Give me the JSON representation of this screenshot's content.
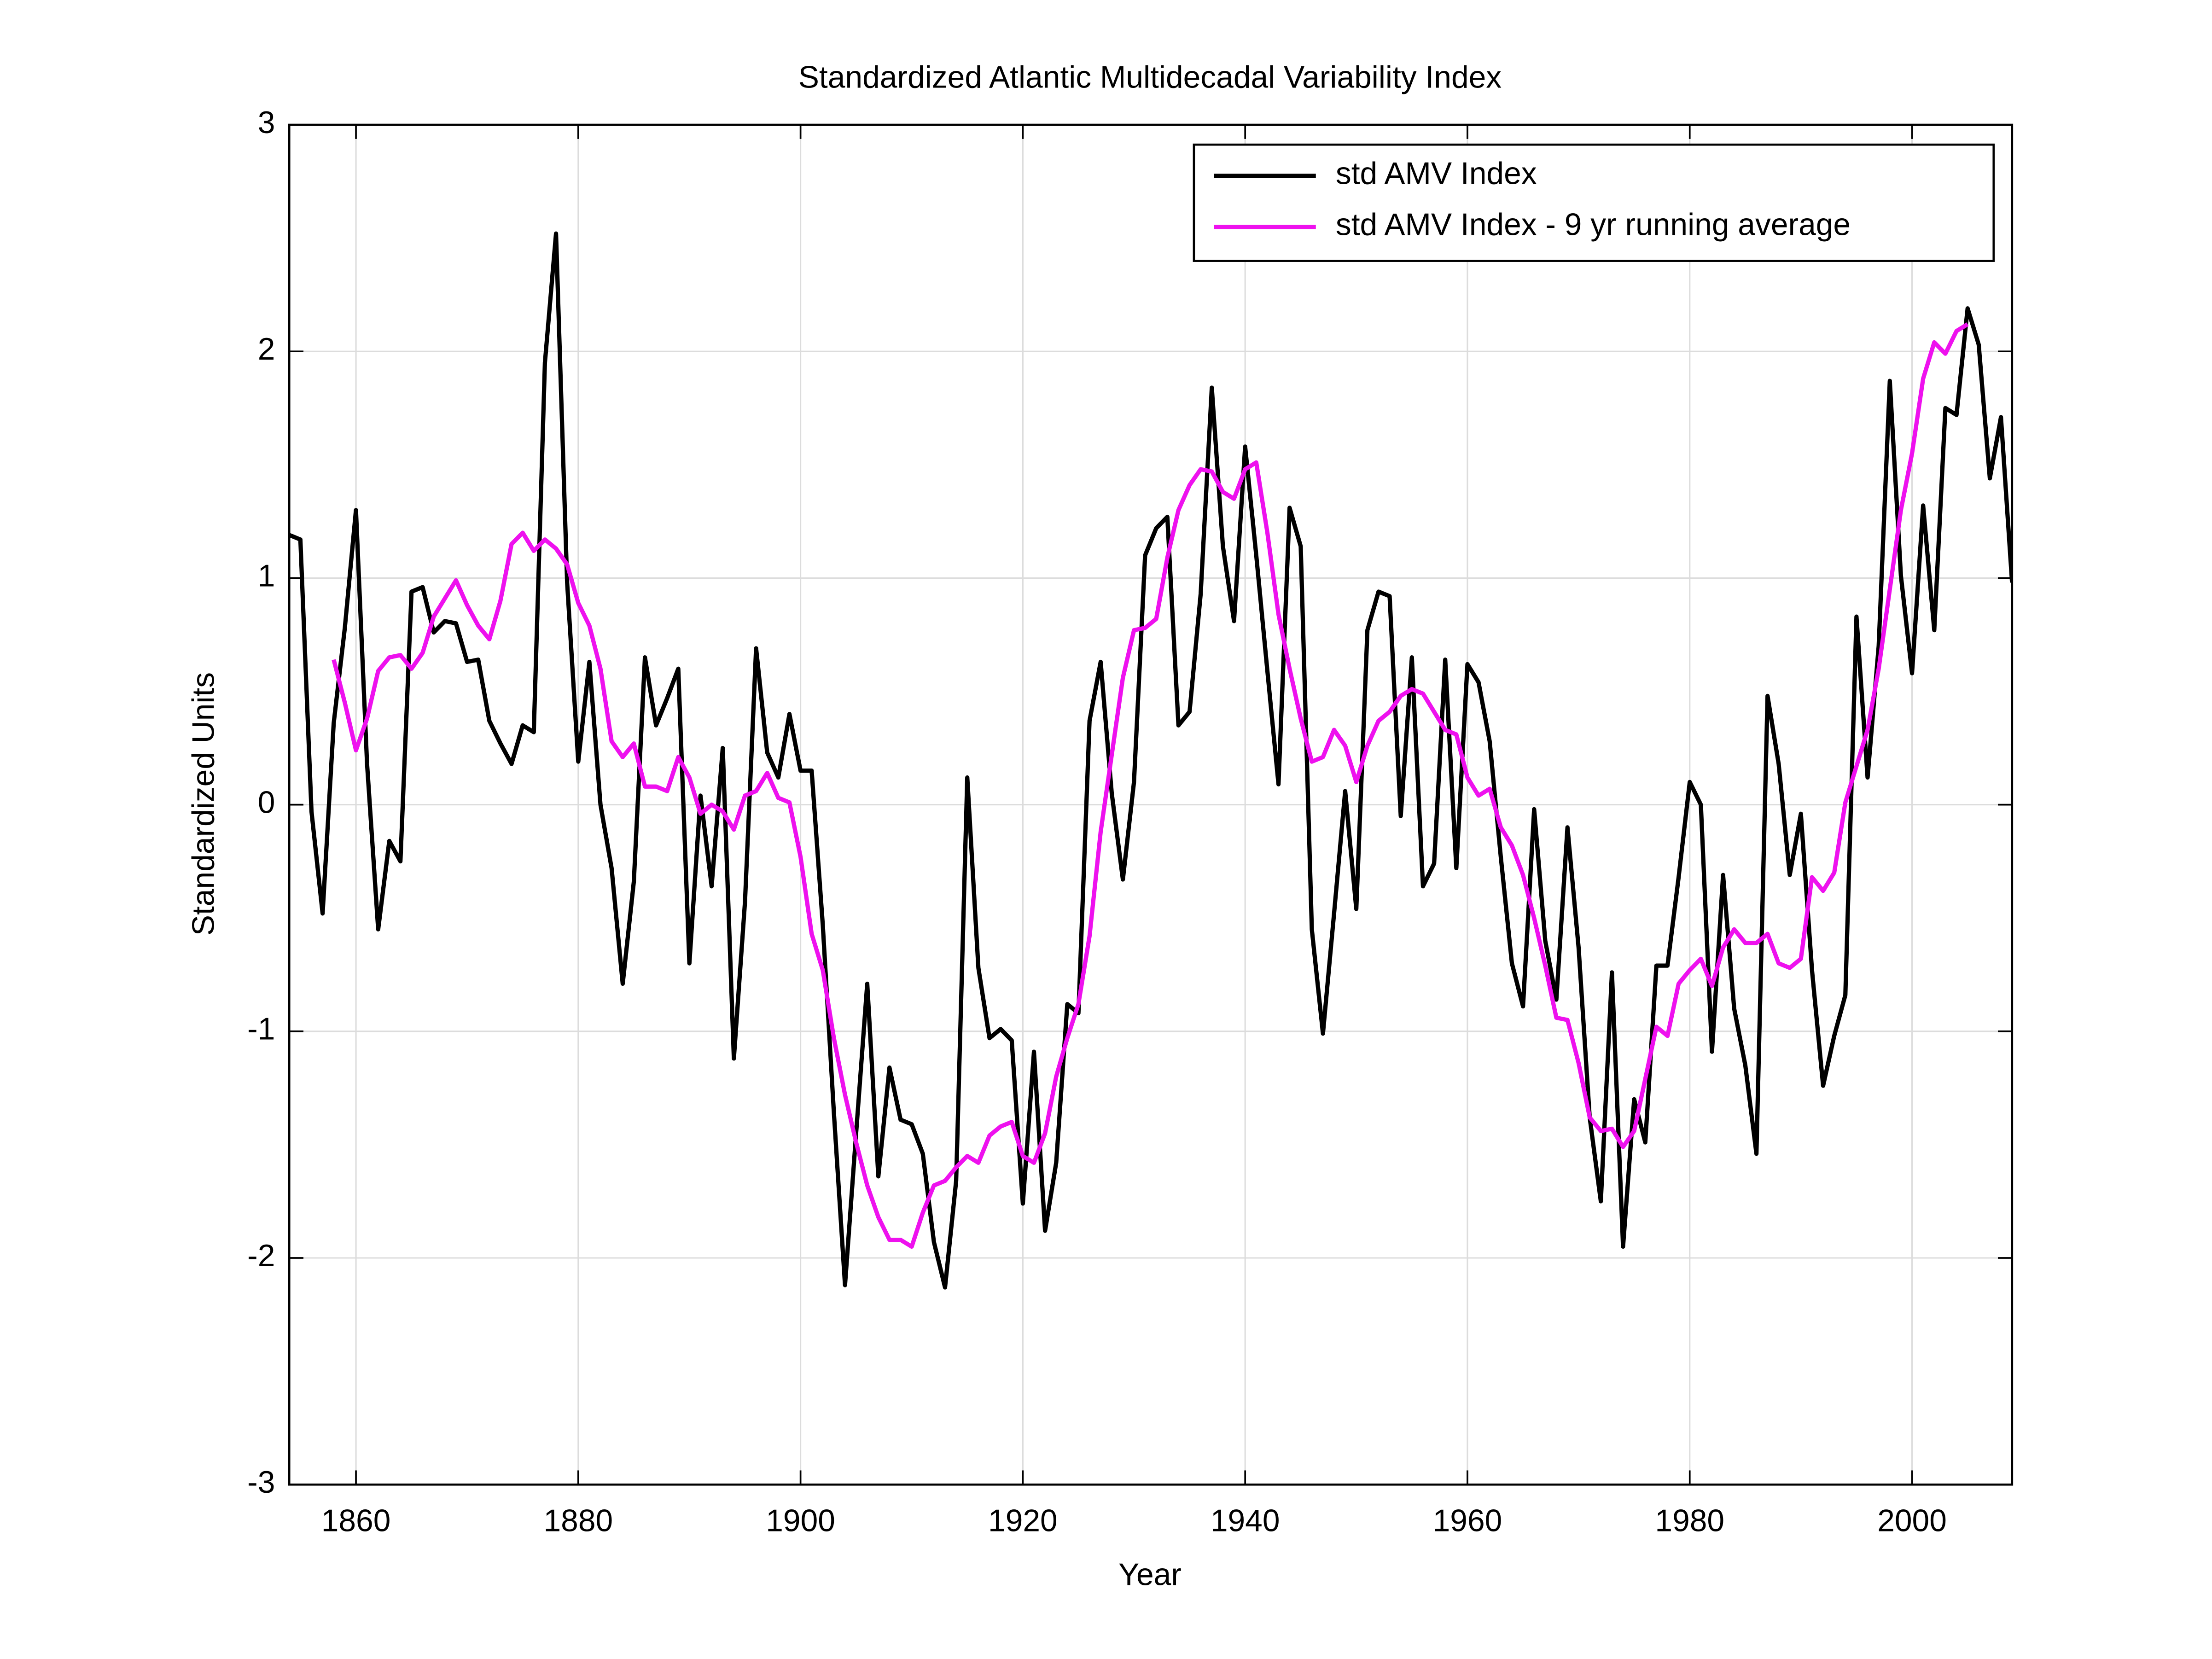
{
  "chart_data": {
    "type": "line",
    "title": "Standardized Atlantic Multidecadal Variability Index",
    "x_label": "Year",
    "y_label": "Standardized Units",
    "x": [
      1854,
      1855,
      1856,
      1857,
      1858,
      1859,
      1860,
      1861,
      1862,
      1863,
      1864,
      1865,
      1866,
      1867,
      1868,
      1869,
      1870,
      1871,
      1872,
      1873,
      1874,
      1875,
      1876,
      1877,
      1878,
      1879,
      1880,
      1881,
      1882,
      1883,
      1884,
      1885,
      1886,
      1887,
      1888,
      1889,
      1890,
      1891,
      1892,
      1893,
      1894,
      1895,
      1896,
      1897,
      1898,
      1899,
      1900,
      1901,
      1902,
      1903,
      1904,
      1905,
      1906,
      1907,
      1908,
      1909,
      1910,
      1911,
      1912,
      1913,
      1914,
      1915,
      1916,
      1917,
      1918,
      1919,
      1920,
      1921,
      1922,
      1923,
      1924,
      1925,
      1926,
      1927,
      1928,
      1929,
      1930,
      1931,
      1932,
      1933,
      1934,
      1935,
      1936,
      1937,
      1938,
      1939,
      1940,
      1941,
      1942,
      1943,
      1944,
      1945,
      1946,
      1947,
      1948,
      1949,
      1950,
      1951,
      1952,
      1953,
      1954,
      1955,
      1956,
      1957,
      1958,
      1959,
      1960,
      1961,
      1962,
      1963,
      1964,
      1965,
      1966,
      1967,
      1968,
      1969,
      1970,
      1971,
      1972,
      1973,
      1974,
      1975,
      1976,
      1977,
      1978,
      1979,
      1980,
      1981,
      1982,
      1983,
      1984,
      1985,
      1986,
      1987,
      1988,
      1989,
      1990,
      1991,
      1992,
      1993,
      1994,
      1995,
      1996,
      1997,
      1998,
      1999,
      2000,
      2001,
      2002,
      2003,
      2004,
      2005,
      2006,
      2007,
      2008,
      2009
    ],
    "series": [
      {
        "name": "std AMV Index",
        "color": "#000000",
        "values": [
          1.19,
          1.17,
          -0.03,
          -0.48,
          0.36,
          0.78,
          1.3,
          0.18,
          -0.55,
          -0.16,
          -0.25,
          0.94,
          0.96,
          0.76,
          0.81,
          0.8,
          0.63,
          0.64,
          0.37,
          0.27,
          0.18,
          0.35,
          0.32,
          1.95,
          2.52,
          0.98,
          0.19,
          0.63,
          0.0,
          -0.28,
          -0.79,
          -0.34,
          0.65,
          0.35,
          0.47,
          0.6,
          -0.7,
          0.04,
          -0.36,
          0.25,
          -1.12,
          -0.43,
          0.69,
          0.23,
          0.12,
          0.4,
          0.15,
          0.15,
          -0.53,
          -1.36,
          -2.12,
          -1.45,
          -0.79,
          -1.64,
          -1.16,
          -1.39,
          -1.41,
          -1.54,
          -1.93,
          -2.13,
          -1.66,
          0.12,
          -0.72,
          -1.03,
          -0.99,
          -1.04,
          -1.76,
          -1.09,
          -1.88,
          -1.58,
          -0.88,
          -0.92,
          0.37,
          0.63,
          0.05,
          -0.33,
          0.1,
          1.1,
          1.22,
          1.27,
          0.35,
          0.41,
          0.93,
          1.84,
          1.14,
          0.81,
          1.58,
          1.1,
          0.59,
          0.09,
          1.31,
          1.14,
          -0.55,
          -1.01,
          -0.48,
          0.06,
          -0.46,
          0.77,
          0.94,
          0.92,
          -0.05,
          0.65,
          -0.36,
          -0.26,
          0.64,
          -0.28,
          0.62,
          0.54,
          0.28,
          -0.23,
          -0.7,
          -0.89,
          -0.02,
          -0.6,
          -0.86,
          -0.1,
          -0.63,
          -1.38,
          -1.75,
          -0.74,
          -1.95,
          -1.3,
          -1.49,
          -0.71,
          -0.71,
          -0.32,
          0.1,
          0.0,
          -1.09,
          -0.31,
          -0.9,
          -1.15,
          -1.54,
          0.48,
          0.18,
          -0.31,
          -0.04,
          -0.73,
          -1.24,
          -1.02,
          -0.84,
          0.83,
          0.12,
          0.7,
          1.87,
          1.01,
          0.58,
          1.32,
          0.77,
          1.75,
          1.72,
          2.19,
          2.03,
          1.44,
          1.71,
          0.98
        ]
      },
      {
        "name": "std AMV Index - 9 yr running average",
        "color": "#ee11ee",
        "values": [
          null,
          null,
          null,
          null,
          0.64,
          0.45,
          0.24,
          0.38,
          0.59,
          0.65,
          0.66,
          0.6,
          0.67,
          0.83,
          0.91,
          0.99,
          0.88,
          0.79,
          0.73,
          0.9,
          1.15,
          1.2,
          1.12,
          1.17,
          1.13,
          1.06,
          0.89,
          0.79,
          0.6,
          0.28,
          0.21,
          0.27,
          0.08,
          0.08,
          0.06,
          0.21,
          0.12,
          -0.04,
          0.0,
          -0.03,
          -0.11,
          0.04,
          0.06,
          0.14,
          0.03,
          0.01,
          -0.23,
          -0.57,
          -0.73,
          -1.03,
          -1.28,
          -1.49,
          -1.68,
          -1.82,
          -1.92,
          -1.92,
          -1.95,
          -1.8,
          -1.68,
          -1.66,
          -1.6,
          -1.55,
          -1.58,
          -1.46,
          -1.42,
          -1.4,
          -1.55,
          -1.58,
          -1.45,
          -1.2,
          -1.03,
          -0.88,
          -0.58,
          -0.12,
          0.22,
          0.56,
          0.77,
          0.78,
          0.82,
          1.09,
          1.3,
          1.41,
          1.48,
          1.47,
          1.38,
          1.35,
          1.48,
          1.51,
          1.2,
          0.84,
          0.6,
          0.38,
          0.19,
          0.21,
          0.33,
          0.26,
          0.1,
          0.26,
          0.37,
          0.41,
          0.48,
          0.51,
          0.49,
          0.41,
          0.33,
          0.31,
          0.12,
          0.04,
          0.07,
          -0.1,
          -0.18,
          -0.31,
          -0.5,
          -0.71,
          -0.94,
          -0.95,
          -1.14,
          -1.38,
          -1.44,
          -1.43,
          -1.51,
          -1.44,
          -1.21,
          -0.98,
          -1.02,
          -0.79,
          -0.73,
          -0.68,
          -0.8,
          -0.63,
          -0.55,
          -0.61,
          -0.61,
          -0.57,
          -0.7,
          -0.72,
          -0.68,
          -0.32,
          -0.38,
          -0.3,
          0.01,
          0.17,
          0.33,
          0.6,
          0.95,
          1.3,
          1.55,
          1.88,
          2.04,
          1.99,
          2.09,
          2.12,
          null,
          null,
          null,
          null
        ]
      }
    ],
    "xlim": [
      1854,
      2009
    ],
    "ylim": [
      -3,
      3
    ],
    "xticks": [
      1860,
      1880,
      1900,
      1920,
      1940,
      1960,
      1980,
      2000
    ],
    "yticks": [
      -3,
      -2,
      -1,
      0,
      1,
      2,
      3
    ],
    "grid": true,
    "legend": "upper right"
  }
}
